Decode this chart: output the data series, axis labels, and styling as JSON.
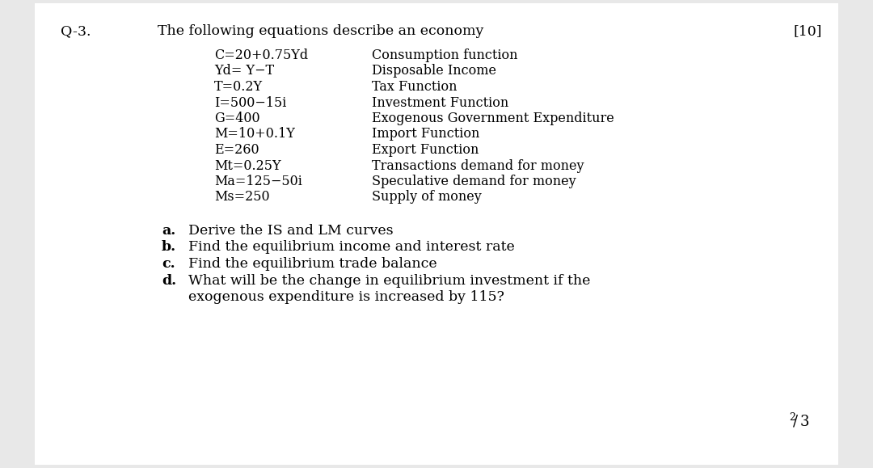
{
  "bg_color": "#e8e8e8",
  "page_bg": "#ffffff",
  "q_label": "Q-3.",
  "q_title": "The following equations describe an economy",
  "marks": "[10]",
  "equations": [
    [
      "C=20+0.75Yd",
      "Consumption function"
    ],
    [
      "Yd= Y−T",
      "Disposable Income"
    ],
    [
      "T=0.2Y",
      "Tax Function"
    ],
    [
      "I=500−15i",
      "Investment Function"
    ],
    [
      "G=400",
      "Exogenous Government Expenditure"
    ],
    [
      "M=10+0.1Y",
      "Import Function"
    ],
    [
      "E=260",
      "Export Function"
    ],
    [
      "Mt=0.25Y",
      "Transactions demand for money"
    ],
    [
      "Ma=125−50i",
      "Speculative demand for money"
    ],
    [
      "Ms=250",
      "Supply of money"
    ]
  ],
  "parts": [
    [
      "a.",
      "Derive the IS and LM curves"
    ],
    [
      "b.",
      "Find the equilibrium income and interest rate"
    ],
    [
      "c.",
      "Find the equilibrium trade balance"
    ],
    [
      "d.",
      "What will be the change in equilibrium investment if the"
    ]
  ],
  "part_d_continuation": "exogenous expenditure is increased by 115?",
  "page_num_top": "2",
  "page_num_bottom": "3",
  "font_size_title": 12.5,
  "font_size_eq": 11.5,
  "font_size_parts": 12.5
}
